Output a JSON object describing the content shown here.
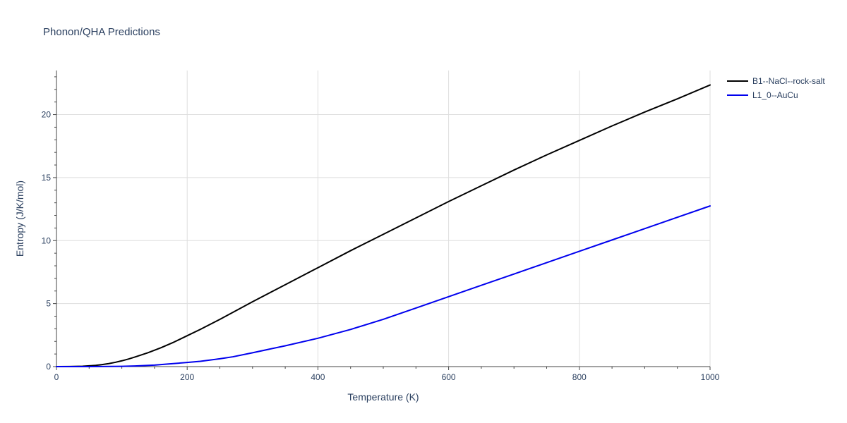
{
  "chart_data": {
    "type": "line",
    "title": "Phonon/QHA Predictions",
    "xlabel": "Temperature (K)",
    "ylabel": "Entropy (J/K/mol)",
    "xlim": [
      0,
      1000
    ],
    "ylim": [
      0,
      23.5
    ],
    "x_ticks": [
      0,
      200,
      400,
      600,
      800,
      1000
    ],
    "y_ticks": [
      0,
      5,
      10,
      15,
      20
    ],
    "grid": true,
    "legend_position": "top-right",
    "series": [
      {
        "name": "B1--NaCl--rock-salt",
        "color": "#000000",
        "x": [
          0,
          20,
          40,
          50,
          60,
          70,
          80,
          90,
          100,
          110,
          120,
          140,
          160,
          180,
          200,
          220,
          250,
          300,
          350,
          400,
          450,
          500,
          550,
          600,
          650,
          700,
          750,
          800,
          850,
          900,
          950,
          1000
        ],
        "y": [
          0,
          0.01,
          0.03,
          0.06,
          0.1,
          0.16,
          0.24,
          0.34,
          0.46,
          0.6,
          0.76,
          1.1,
          1.5,
          1.95,
          2.45,
          2.95,
          3.75,
          5.15,
          6.5,
          7.85,
          9.2,
          10.5,
          11.8,
          13.1,
          14.35,
          15.6,
          16.8,
          17.95,
          19.1,
          20.2,
          21.25,
          22.35
        ]
      },
      {
        "name": "L1_0--AuCu",
        "color": "#0000ee",
        "x": [
          0,
          50,
          100,
          120,
          150,
          170,
          200,
          220,
          250,
          270,
          300,
          350,
          400,
          450,
          500,
          550,
          600,
          650,
          700,
          750,
          800,
          850,
          900,
          950,
          1000
        ],
        "y": [
          0,
          0,
          0.02,
          0.05,
          0.12,
          0.2,
          0.33,
          0.42,
          0.62,
          0.78,
          1.1,
          1.65,
          2.25,
          2.95,
          3.75,
          4.65,
          5.55,
          6.45,
          7.35,
          8.25,
          9.15,
          10.05,
          10.95,
          11.85,
          12.75
        ]
      }
    ]
  }
}
